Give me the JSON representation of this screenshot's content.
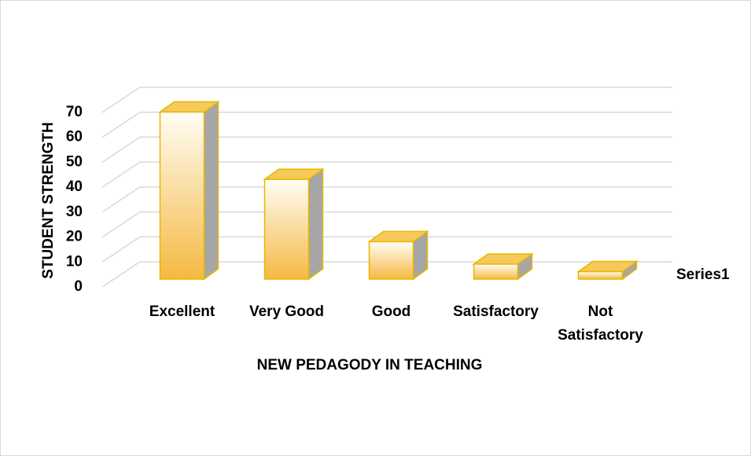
{
  "chart_data": {
    "type": "bar3d",
    "categories": [
      "Excellent",
      "Very Good",
      "Good",
      "Satisfactory",
      "Not Satisfactory"
    ],
    "series": [
      {
        "name": "Series1",
        "color": "#f5b942",
        "values": [
          67,
          40,
          15,
          6,
          3
        ]
      }
    ],
    "xlabel": "NEW PEDAGODY IN TEACHING",
    "ylabel": "STUDENT STRENGTH",
    "ylim": [
      0,
      70
    ],
    "yticks": [
      0,
      10,
      20,
      30,
      40,
      50,
      60,
      70
    ],
    "grid": true,
    "legend": "right"
  }
}
